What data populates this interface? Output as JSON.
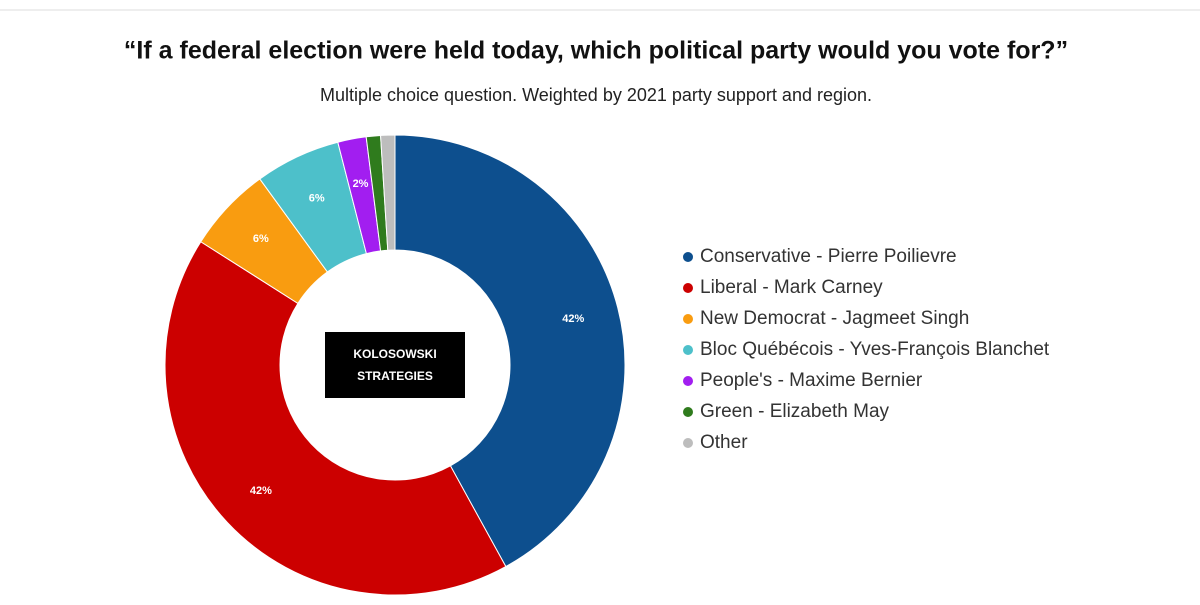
{
  "chart_data": {
    "type": "donut",
    "title": "“If a federal election were held today, which political party would you vote for?”",
    "subtitle": "Multiple choice question. Weighted by 2021 party support and region.",
    "watermark": [
      "KOLOSOWSKI",
      "STRATEGIES"
    ],
    "legend": "right",
    "series": [
      {
        "name": "Conservative - Pierre Poilievre",
        "color": "#0d4f8e",
        "values": [
          42
        ],
        "value_labels": [
          "42%"
        ]
      },
      {
        "name": "Liberal - Mark Carney",
        "color": "#cc0000",
        "values": [
          42
        ],
        "value_labels": [
          "42%"
        ]
      },
      {
        "name": "New Democrat - Jagmeet Singh",
        "color": "#f99c10",
        "values": [
          6
        ],
        "value_labels": [
          "6%"
        ]
      },
      {
        "name": "Bloc Québécois - Yves-François Blanchet",
        "color": "#4dc0ca",
        "values": [
          6
        ],
        "value_labels": [
          "6%"
        ]
      },
      {
        "name": "People's - Maxime Bernier",
        "color": "#a21ef0",
        "values": [
          2
        ],
        "value_labels": [
          "2%"
        ]
      },
      {
        "name": "Green - Elizabeth May",
        "color": "#2f7b1d",
        "values": [
          1
        ]
      },
      {
        "name": "Other",
        "color": "#bdbdbd",
        "values": [
          1
        ]
      }
    ]
  }
}
